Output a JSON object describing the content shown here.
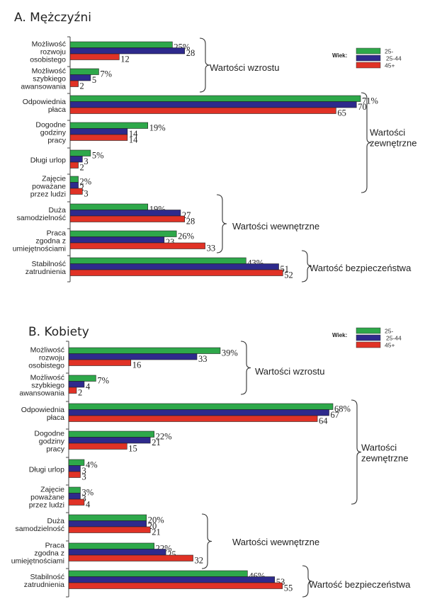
{
  "chart_data": [
    {
      "type": "bar",
      "orientation": "horizontal",
      "title": "A. Mężczyźni",
      "unit": "%",
      "categories": [
        "Możliwość rozwoju osobistego",
        "Możliwość szybkiego awansowania",
        "Odpowiednia płaca",
        "Dogodne godziny pracy",
        "Długi urlop",
        "Zajęcie poważane przez ludzi",
        "Duża samodzielność",
        "Praca zgodna z umiejętnościami",
        "Stabilność zatrudnienia"
      ],
      "category_lines": [
        [
          "Możliwość",
          "rozwoju",
          "osobistego"
        ],
        [
          "Możliwość",
          "szybkiego",
          "awansowania"
        ],
        [
          "Odpowiednia",
          "płaca"
        ],
        [
          "Dogodne",
          "godziny",
          "pracy"
        ],
        [
          "Długi urlop"
        ],
        [
          "Zajęcie",
          "poważane",
          "przez ludzi"
        ],
        [
          "Duża",
          "samodzielność"
        ],
        [
          "Praca",
          "zgodna z",
          "umiejętnościami"
        ],
        [
          "Stabilność",
          "zatrudnienia"
        ]
      ],
      "series": [
        {
          "name": "25-",
          "color": "#2ea84a",
          "values": [
            25,
            7,
            71,
            19,
            5,
            2,
            19,
            26,
            43
          ]
        },
        {
          "name": "25-44",
          "color": "#2e2a8c",
          "values": [
            28,
            5,
            70,
            14,
            3,
            2,
            27,
            23,
            51
          ]
        },
        {
          "name": "45+",
          "color": "#e03226",
          "values": [
            12,
            2,
            65,
            14,
            2,
            3,
            28,
            33,
            52
          ]
        }
      ],
      "groups": [
        {
          "label": [
            "Wartości wzrostu"
          ],
          "categories": [
            0,
            1
          ]
        },
        {
          "label": [
            "Wartości",
            "zewnętrzne"
          ],
          "categories": [
            2,
            3,
            4,
            5
          ]
        },
        {
          "label": [
            "Wartości wewnętrzne"
          ],
          "categories": [
            6,
            7
          ]
        },
        {
          "label": [
            "Wartość bezpieczeństwa"
          ],
          "categories": [
            8
          ]
        }
      ],
      "legend": {
        "title": "Wiek:",
        "placement": "top-right"
      },
      "xlim": [
        0,
        75
      ]
    },
    {
      "type": "bar",
      "orientation": "horizontal",
      "title": "B. Kobiety",
      "unit": "%",
      "categories": [
        "Możliwość rozwoju osobistego",
        "Możliwość szybkiego awansowania",
        "Odpowiednia płaca",
        "Dogodne godziny pracy",
        "Długi urlop",
        "Zajęcie poważane przez ludzi",
        "Duża samodzielność",
        "Praca zgodna z umiejętnościami",
        "Stabilność zatrudnienia"
      ],
      "category_lines": [
        [
          "Możliwość",
          "rozwoju",
          "osobistego"
        ],
        [
          "Możliwość",
          "szybkiego",
          "awansowania"
        ],
        [
          "Odpowiednia",
          "płaca"
        ],
        [
          "Dogodne",
          "godziny",
          "pracy"
        ],
        [
          "Długi urlop"
        ],
        [
          "Zajęcie",
          "poważane",
          "przez ludzi"
        ],
        [
          "Duża",
          "samodzielność"
        ],
        [
          "Praca",
          "zgodna z",
          "umiejętnościami"
        ],
        [
          "Stabilność",
          "zatrudnienia"
        ]
      ],
      "series": [
        {
          "name": "25-",
          "color": "#2ea84a",
          "values": [
            39,
            7,
            68,
            22,
            4,
            3,
            20,
            22,
            46
          ]
        },
        {
          "name": "25-44",
          "color": "#2e2a8c",
          "values": [
            33,
            4,
            67,
            21,
            3,
            3,
            20,
            25,
            53
          ]
        },
        {
          "name": "45+",
          "color": "#e03226",
          "values": [
            16,
            2,
            64,
            15,
            3,
            4,
            21,
            32,
            55
          ]
        }
      ],
      "groups": [
        {
          "label": [
            "Wartości wzrostu"
          ],
          "categories": [
            0,
            1
          ]
        },
        {
          "label": [
            "Wartości",
            "zewnętrzne"
          ],
          "categories": [
            2,
            3,
            4,
            5
          ]
        },
        {
          "label": [
            "Wartości wewnętrzne"
          ],
          "categories": [
            6,
            7
          ]
        },
        {
          "label": [
            "Wartość bezpieczeństwa"
          ],
          "categories": [
            8
          ]
        }
      ],
      "legend": {
        "title": "Wiek:",
        "placement": "top-right"
      },
      "xlim": [
        0,
        75
      ]
    }
  ]
}
